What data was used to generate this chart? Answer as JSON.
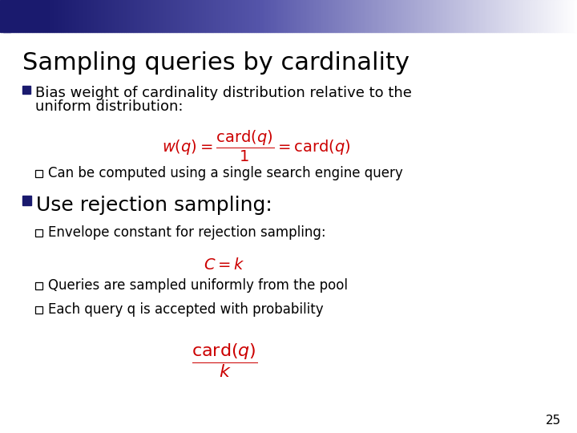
{
  "title": "Sampling queries by cardinality",
  "background_color": "#ffffff",
  "title_color": "#000000",
  "title_fontsize": 22,
  "slide_number": "25",
  "bullet1_text_line1": "Bias weight of cardinality distribution relative to the",
  "bullet1_text_line2": "uniform distribution:",
  "formula1": "$w(q) = \\dfrac{\\mathrm{card}(q)}{1} = \\mathrm{card}(q)$",
  "sub_bullet1": "Can be computed using a single search engine query",
  "bullet2_text": "Use rejection sampling:",
  "sub_bullet2": "Envelope constant for rejection sampling:",
  "formula2": "$C = k$",
  "sub_bullet3": "Queries are sampled uniformly from the pool",
  "sub_bullet4": "Each query q is accepted with probability",
  "formula3": "$\\dfrac{\\mathrm{card}(q)}{k}$",
  "formula_color": "#cc0000",
  "bullet_color": "#1a1a6e",
  "text_color": "#000000",
  "text_fontsize": 13,
  "sub_text_fontsize": 12,
  "bullet2_fontsize": 18
}
